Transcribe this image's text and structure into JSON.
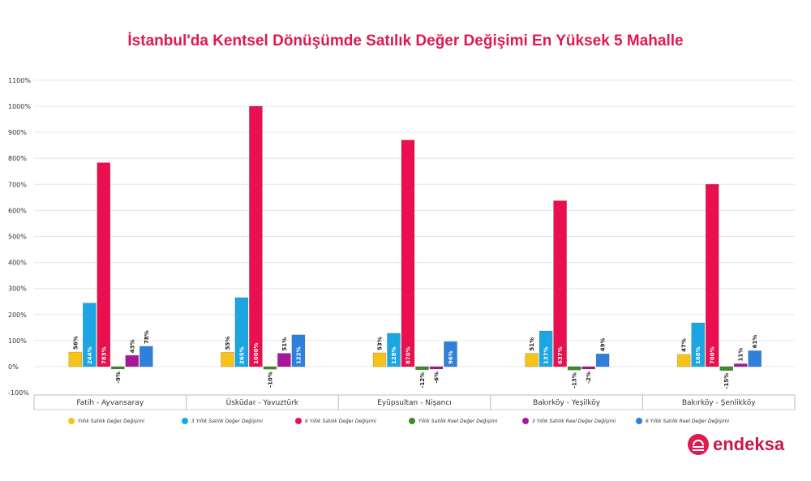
{
  "chart_data": {
    "type": "bar",
    "title": "İstanbul'da Kentsel Dönüşümde Satılık Değer Değişimi En Yüksek 5 Mahalle",
    "categories": [
      "Fatih - Ayvansaray",
      "Üsküdar - Yavuztürk",
      "Eyüpsultan - Nişancı",
      "Bakırköy - Yeşilköy",
      "Bakırköy - Şenlikköy"
    ],
    "ylim": [
      -100,
      1100
    ],
    "yticks": [
      -100,
      0,
      100,
      200,
      300,
      400,
      500,
      600,
      700,
      800,
      900,
      1000,
      1100
    ],
    "ytick_labels": [
      "-100%",
      "0%",
      "100%",
      "200%",
      "300%",
      "400%",
      "500%",
      "600%",
      "700%",
      "800%",
      "900%",
      "1000%",
      "1100%"
    ],
    "grid": true,
    "legend_position": "bottom",
    "series": [
      {
        "name": "Yıllık Satılık Değer Değişimi",
        "color": "#f7c31a",
        "values": [
          56,
          55,
          53,
          51,
          47
        ]
      },
      {
        "name": "3 Yıllık Satılık Değer Değişimi",
        "color": "#1ba6e3",
        "values": [
          244,
          265,
          128,
          137,
          168
        ]
      },
      {
        "name": "6 Yıllık Satılık Değer Değişimi",
        "color": "#ea0f4e",
        "values": [
          783,
          1000,
          870,
          637,
          700
        ]
      },
      {
        "name": "Yıllık Satılık Reel Değer Değişimi",
        "color": "#3f8a2a",
        "values": [
          -9,
          -10,
          -12,
          -13,
          -15
        ]
      },
      {
        "name": "3 Yıllık Satılık Reel Değer Değişimi",
        "color": "#a8169a",
        "values": [
          43,
          51,
          -6,
          -2,
          11
        ]
      },
      {
        "name": "6 Yıllık Satılık Reel Değer Değişimi",
        "color": "#2f7fdc",
        "values": [
          78,
          122,
          96,
          49,
          61
        ]
      }
    ]
  },
  "brand": {
    "name": "endeksa",
    "color": "#e0194f"
  }
}
